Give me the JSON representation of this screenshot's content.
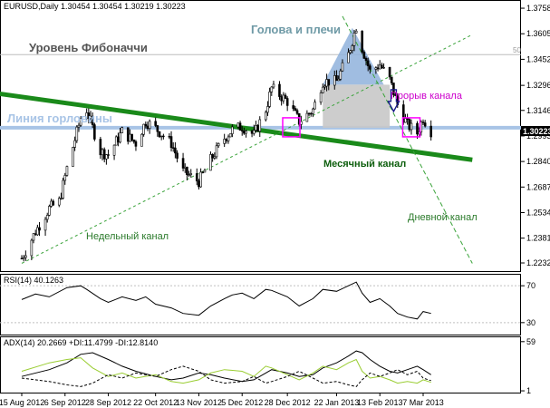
{
  "window": {
    "symbol_header": "EURUSD,Daily  1.30454 1.30454 1.30219 1.30223",
    "rsi_header": "RSI(14) 40.1263",
    "adx_header": "ADX(14) 20.2669 +DI:11.4799 -DI:12.8140"
  },
  "colors": {
    "bull": "#ffffff",
    "bear": "#000000",
    "monthly_channel": "#1a8a1a",
    "weekly_channel": "#3aa33a",
    "neckline": "#a8c4e6",
    "fib_level": "#bdbdbd",
    "head_shoulders_fill": "#8fb1dc",
    "breakout_fill": "#c8c8c8",
    "breakout_marker": "#ff00ff",
    "arrow": "#1a1a8a",
    "adx": "#000000",
    "plus_di": "#9acd32",
    "minus_di": "#000000"
  },
  "chart_data": [
    {
      "type": "candlestick",
      "title": "EURUSD,Daily",
      "ylim": [
        1.22,
        1.378
      ],
      "y_ticks": [
        "1.37580",
        "1.36050",
        "1.34520",
        "1.32960",
        "1.31460",
        "1.29930",
        "1.28400",
        "1.26870",
        "1.25340",
        "1.23810",
        "1.22325"
      ],
      "x_ticks": [
        "15 Aug 2012",
        "6 Sep 2012",
        "28 Sep 2012",
        "22 Oct 2012",
        "13 Nov 2012",
        "5 Dec 2012",
        "28 Dec 2012",
        "22 Jan 2013",
        "13 Feb 2013",
        "7 Mar 2013"
      ],
      "current_price_label": "1.30223",
      "fib_tag": "50",
      "close_path": [
        [
          "15 Aug 2012",
          1.226
        ],
        [
          "22 Aug 2012",
          1.242
        ],
        [
          "29 Aug 2012",
          1.256
        ],
        [
          "3 Sep 2012",
          1.26
        ],
        [
          "7 Sep 2012",
          1.28
        ],
        [
          "14 Sep 2012",
          1.31
        ],
        [
          "17 Sep 2012",
          1.315
        ],
        [
          "24 Sep 2012",
          1.29
        ],
        [
          "28 Sep 2012",
          1.288
        ],
        [
          "5 Oct 2012",
          1.302
        ],
        [
          "12 Oct 2012",
          1.295
        ],
        [
          "17 Oct 2012",
          1.308
        ],
        [
          "22 Oct 2012",
          1.304
        ],
        [
          "30 Oct 2012",
          1.295
        ],
        [
          "5 Nov 2012",
          1.278
        ],
        [
          "13 Nov 2012",
          1.272
        ],
        [
          "19 Nov 2012",
          1.285
        ],
        [
          "26 Nov 2012",
          1.298
        ],
        [
          "30 Nov 2012",
          1.303
        ],
        [
          "5 Dec 2012",
          1.305
        ],
        [
          "11 Dec 2012",
          1.3
        ],
        [
          "17 Dec 2012",
          1.315
        ],
        [
          "20 Dec 2012",
          1.328
        ],
        [
          "28 Dec 2012",
          1.32
        ],
        [
          "3 Jan 2013",
          1.308
        ],
        [
          "10 Jan 2013",
          1.315
        ],
        [
          "15 Jan 2013",
          1.332
        ],
        [
          "22 Jan 2013",
          1.332
        ],
        [
          "28 Jan 2013",
          1.348
        ],
        [
          "1 Feb 2013",
          1.365
        ],
        [
          "4 Feb 2013",
          1.352
        ],
        [
          "8 Feb 2013",
          1.338
        ],
        [
          "13 Feb 2013",
          1.342
        ],
        [
          "18 Feb 2013",
          1.333
        ],
        [
          "22 Feb 2013",
          1.318
        ],
        [
          "27 Feb 2013",
          1.306
        ],
        [
          "4 Mar 2013",
          1.301
        ],
        [
          "7 Mar 2013",
          1.31
        ],
        [
          "11 Mar 2013",
          1.3022
        ]
      ],
      "levels": {
        "fibonacci": 1.348,
        "neckline": 1.3042
      },
      "channels": {
        "monthly": [
          [
            "1 Aug 2012",
            1.325
          ],
          [
            "1 Apr 2013",
            1.285
          ]
        ],
        "weekly": [
          [
            "15 Aug 2012",
            1.223
          ],
          [
            "1 Apr 2013",
            1.36
          ]
        ],
        "daily": [
          [
            "25 Jan 2013",
            1.371
          ],
          [
            "1 Apr 2013",
            1.223
          ]
        ]
      },
      "annotations": {
        "fibonacci_label": "Уровень Фибоначчи",
        "head_shoulders_label": "Голова и плечи",
        "neckline_label": "Линия горловины",
        "breakout_label": "Прорыв канала",
        "monthly_label": "Месячный канал",
        "weekly_label": "Недельный канал",
        "daily_label": "Дневной канал"
      }
    },
    {
      "type": "line",
      "title": "RSI(14) 40.1263",
      "ylim": [
        20,
        80
      ],
      "y_ticks": [
        "70",
        "30"
      ],
      "levels": [
        70,
        30
      ],
      "series": [
        {
          "name": "RSI(14)",
          "values": [
            [
              "15 Aug 2012",
              55
            ],
            [
              "22 Aug 2012",
              61
            ],
            [
              "29 Aug 2012",
              58
            ],
            [
              "7 Sep 2012",
              68
            ],
            [
              "14 Sep 2012",
              70
            ],
            [
              "17 Sep 2012",
              66
            ],
            [
              "24 Sep 2012",
              56
            ],
            [
              "28 Sep 2012",
              52
            ],
            [
              "5 Oct 2012",
              58
            ],
            [
              "12 Oct 2012",
              54
            ],
            [
              "17 Oct 2012",
              58
            ],
            [
              "22 Oct 2012",
              50
            ],
            [
              "30 Oct 2012",
              46
            ],
            [
              "5 Nov 2012",
              40
            ],
            [
              "13 Nov 2012",
              38
            ],
            [
              "19 Nov 2012",
              48
            ],
            [
              "26 Nov 2012",
              56
            ],
            [
              "30 Nov 2012",
              60
            ],
            [
              "5 Dec 2012",
              62
            ],
            [
              "11 Dec 2012",
              56
            ],
            [
              "17 Dec 2012",
              66
            ],
            [
              "20 Dec 2012",
              65
            ],
            [
              "28 Dec 2012",
              58
            ],
            [
              "3 Jan 2013",
              48
            ],
            [
              "10 Jan 2013",
              56
            ],
            [
              "15 Jan 2013",
              66
            ],
            [
              "22 Jan 2013",
              64
            ],
            [
              "28 Jan 2013",
              70
            ],
            [
              "1 Feb 2013",
              74
            ],
            [
              "4 Feb 2013",
              62
            ],
            [
              "8 Feb 2013",
              52
            ],
            [
              "13 Feb 2013",
              56
            ],
            [
              "18 Feb 2013",
              48
            ],
            [
              "22 Feb 2013",
              40
            ],
            [
              "27 Feb 2013",
              36
            ],
            [
              "4 Mar 2013",
              34
            ],
            [
              "7 Mar 2013",
              42
            ],
            [
              "11 Mar 2013",
              40
            ]
          ]
        }
      ]
    },
    {
      "type": "line",
      "title": "ADX(14) 20.2669 +DI:11.4799 -DI:12.8140",
      "ylim": [
        0,
        62
      ],
      "y_ticks": [
        "59",
        "1"
      ],
      "series": [
        {
          "name": "ADX(14)",
          "values": [
            [
              "15 Aug 2012",
              18
            ],
            [
              "29 Aug 2012",
              26
            ],
            [
              "7 Sep 2012",
              34
            ],
            [
              "14 Sep 2012",
              44
            ],
            [
              "20 Sep 2012",
              46
            ],
            [
              "28 Sep 2012",
              38
            ],
            [
              "5 Oct 2012",
              30
            ],
            [
              "12 Oct 2012",
              24
            ],
            [
              "22 Oct 2012",
              18
            ],
            [
              "30 Oct 2012",
              14
            ],
            [
              "5 Nov 2012",
              16
            ],
            [
              "13 Nov 2012",
              22
            ],
            [
              "19 Nov 2012",
              20
            ],
            [
              "26 Nov 2012",
              16
            ],
            [
              "5 Dec 2012",
              12
            ],
            [
              "11 Dec 2012",
              14
            ],
            [
              "17 Dec 2012",
              22
            ],
            [
              "20 Dec 2012",
              26
            ],
            [
              "28 Dec 2012",
              22
            ],
            [
              "3 Jan 2013",
              18
            ],
            [
              "10 Jan 2013",
              20
            ],
            [
              "15 Jan 2013",
              28
            ],
            [
              "22 Jan 2013",
              34
            ],
            [
              "28 Jan 2013",
              42
            ],
            [
              "1 Feb 2013",
              48
            ],
            [
              "4 Feb 2013",
              46
            ],
            [
              "8 Feb 2013",
              38
            ],
            [
              "13 Feb 2013",
              30
            ],
            [
              "18 Feb 2013",
              24
            ],
            [
              "22 Feb 2013",
              22
            ],
            [
              "27 Feb 2013",
              26
            ],
            [
              "4 Mar 2013",
              30
            ],
            [
              "7 Mar 2013",
              26
            ],
            [
              "11 Mar 2013",
              20
            ]
          ]
        },
        {
          "name": "+DI",
          "values": [
            [
              "15 Aug 2012",
              24
            ],
            [
              "29 Aug 2012",
              34
            ],
            [
              "7 Sep 2012",
              38
            ],
            [
              "14 Sep 2012",
              40
            ],
            [
              "20 Sep 2012",
              28
            ],
            [
              "28 Sep 2012",
              18
            ],
            [
              "5 Oct 2012",
              22
            ],
            [
              "12 Oct 2012",
              16
            ],
            [
              "22 Oct 2012",
              20
            ],
            [
              "30 Oct 2012",
              12
            ],
            [
              "5 Nov 2012",
              10
            ],
            [
              "13 Nov 2012",
              14
            ],
            [
              "19 Nov 2012",
              22
            ],
            [
              "26 Nov 2012",
              26
            ],
            [
              "5 Dec 2012",
              24
            ],
            [
              "11 Dec 2012",
              18
            ],
            [
              "17 Dec 2012",
              30
            ],
            [
              "20 Dec 2012",
              28
            ],
            [
              "28 Dec 2012",
              20
            ],
            [
              "3 Jan 2013",
              14
            ],
            [
              "10 Jan 2013",
              22
            ],
            [
              "15 Jan 2013",
              30
            ],
            [
              "22 Jan 2013",
              26
            ],
            [
              "28 Jan 2013",
              34
            ],
            [
              "1 Feb 2013",
              38
            ],
            [
              "4 Feb 2013",
              24
            ],
            [
              "8 Feb 2013",
              16
            ],
            [
              "13 Feb 2013",
              18
            ],
            [
              "18 Feb 2013",
              14
            ],
            [
              "22 Feb 2013",
              10
            ],
            [
              "27 Feb 2013",
              12
            ],
            [
              "4 Mar 2013",
              10
            ],
            [
              "7 Mar 2013",
              14
            ],
            [
              "11 Mar 2013",
              11
            ]
          ]
        },
        {
          "name": "-DI",
          "values": [
            [
              "15 Aug 2012",
              16
            ],
            [
              "29 Aug 2012",
              12
            ],
            [
              "7 Sep 2012",
              8
            ],
            [
              "14 Sep 2012",
              6
            ],
            [
              "20 Sep 2012",
              10
            ],
            [
              "28 Sep 2012",
              20
            ],
            [
              "5 Oct 2012",
              16
            ],
            [
              "12 Oct 2012",
              22
            ],
            [
              "22 Oct 2012",
              18
            ],
            [
              "30 Oct 2012",
              26
            ],
            [
              "5 Nov 2012",
              30
            ],
            [
              "13 Nov 2012",
              24
            ],
            [
              "19 Nov 2012",
              14
            ],
            [
              "26 Nov 2012",
              10
            ],
            [
              "5 Dec 2012",
              12
            ],
            [
              "11 Dec 2012",
              18
            ],
            [
              "17 Dec 2012",
              10
            ],
            [
              "20 Dec 2012",
              12
            ],
            [
              "28 Dec 2012",
              18
            ],
            [
              "3 Jan 2013",
              24
            ],
            [
              "10 Jan 2013",
              16
            ],
            [
              "15 Jan 2013",
              10
            ],
            [
              "22 Jan 2013",
              12
            ],
            [
              "28 Jan 2013",
              8
            ],
            [
              "1 Feb 2013",
              6
            ],
            [
              "4 Feb 2013",
              14
            ],
            [
              "8 Feb 2013",
              22
            ],
            [
              "13 Feb 2013",
              18
            ],
            [
              "18 Feb 2013",
              22
            ],
            [
              "22 Feb 2013",
              26
            ],
            [
              "27 Feb 2013",
              20
            ],
            [
              "4 Mar 2013",
              24
            ],
            [
              "7 Mar 2013",
              16
            ],
            [
              "11 Mar 2013",
              13
            ]
          ]
        }
      ]
    }
  ]
}
